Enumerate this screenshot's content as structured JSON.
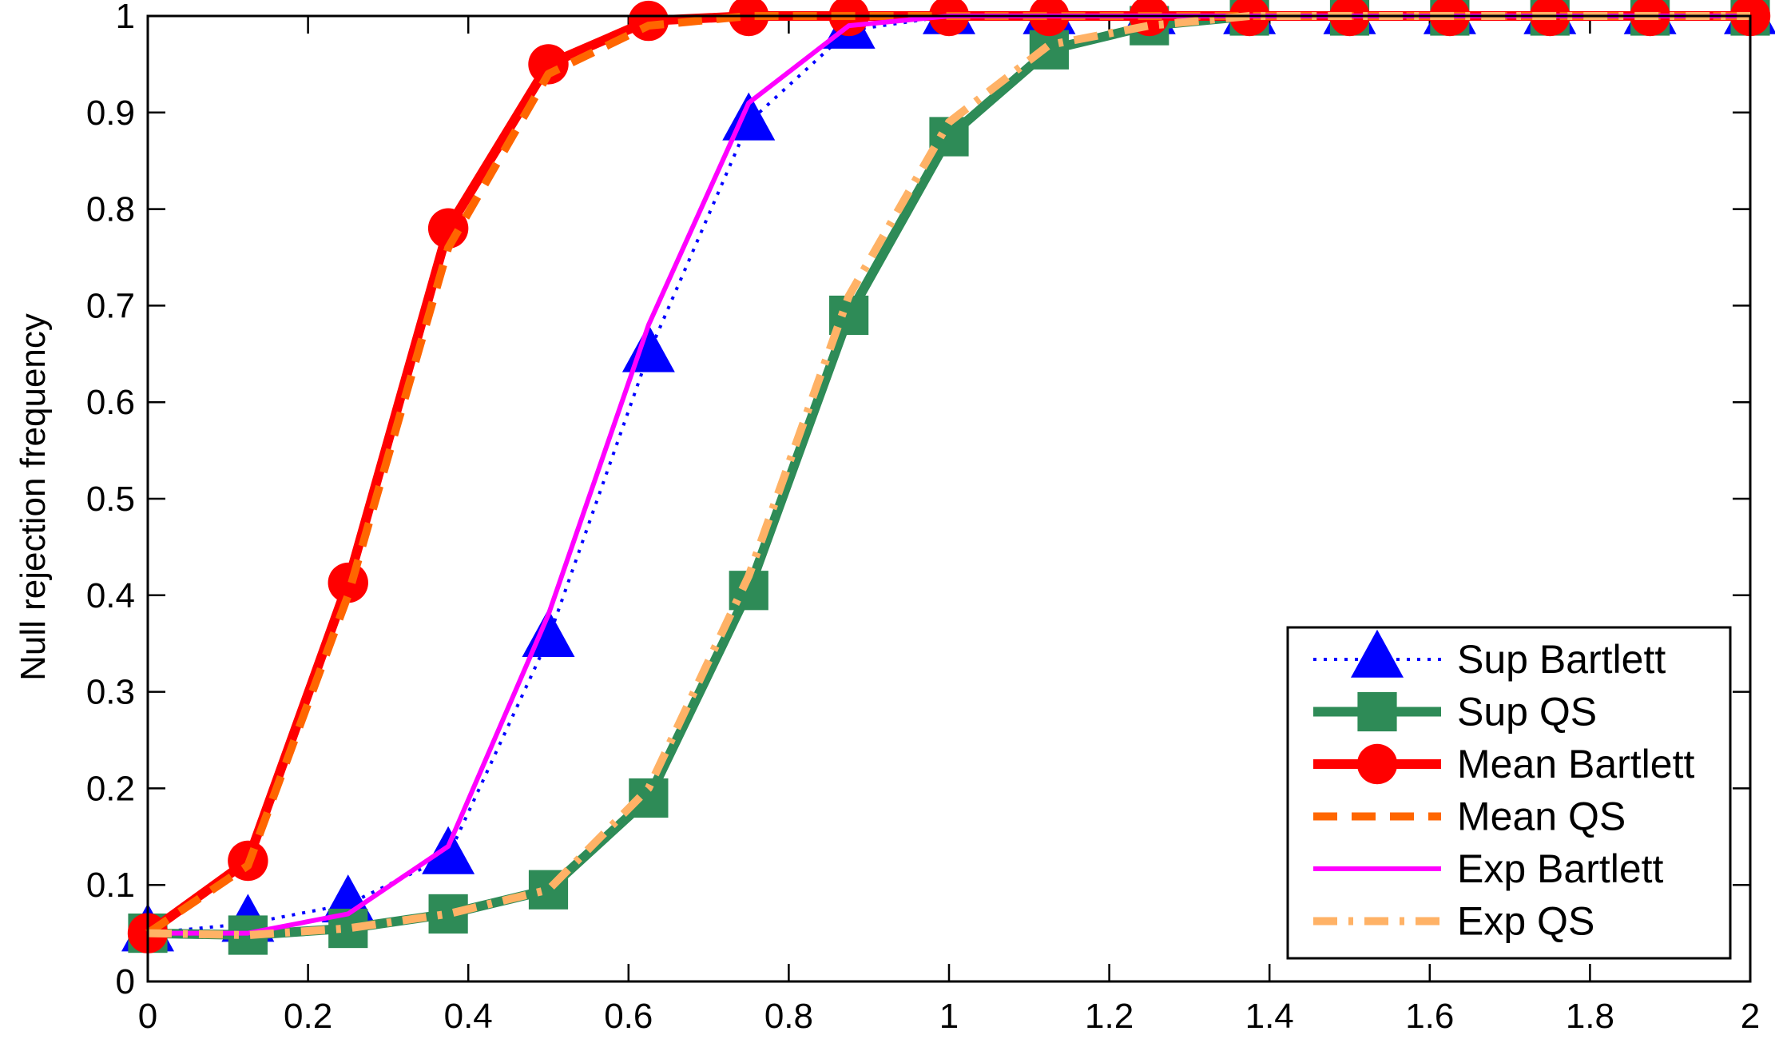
{
  "chart_data": {
    "type": "line",
    "title": "",
    "xlabel": "",
    "ylabel": "Null rejection frequency",
    "xlim": [
      0,
      2
    ],
    "ylim": [
      0,
      1.0
    ],
    "grid": false,
    "legend_position": "bottom-right",
    "xticks": [
      0,
      0.2,
      0.4,
      0.6,
      0.8,
      1,
      1.2,
      1.4,
      1.6,
      1.8,
      2
    ],
    "xtick_labels": [
      "0",
      "0.2",
      "0.4",
      "0.6",
      "0.8",
      "1",
      "1.2",
      "1.4",
      "1.6",
      "1.8",
      "2"
    ],
    "yticks": [
      0,
      0.1,
      0.2,
      0.3,
      0.4,
      0.5,
      0.6,
      0.7,
      0.8,
      0.9,
      1
    ],
    "ytick_labels": [
      "0",
      "0.1",
      "0.2",
      "0.3",
      "0.4",
      "0.5",
      "0.6",
      "0.7",
      "0.8",
      "0.9",
      "1"
    ],
    "x": [
      0,
      0.125,
      0.25,
      0.375,
      0.5,
      0.625,
      0.75,
      0.875,
      1,
      1.125,
      1.25,
      1.375,
      1.5,
      1.625,
      1.75,
      1.875,
      2
    ],
    "series": [
      {
        "name": "Sup Bartlett",
        "color": "#0000ff",
        "line_style": "dotted",
        "marker": "triangle",
        "values": [
          0.05,
          0.06,
          0.08,
          0.13,
          0.355,
          0.65,
          0.89,
          0.985,
          1,
          1,
          1,
          1,
          1,
          1,
          1,
          1,
          1
        ]
      },
      {
        "name": "Sup QS",
        "color": "#2e8b57",
        "line_style": "solid",
        "marker": "square",
        "values": [
          0.05,
          0.048,
          0.055,
          0.07,
          0.095,
          0.19,
          0.405,
          0.69,
          0.875,
          0.965,
          0.99,
          1,
          1,
          1,
          1,
          1,
          1
        ]
      },
      {
        "name": "Mean Bartlett",
        "color": "#ff0000",
        "line_style": "solid",
        "marker": "circle",
        "values": [
          0.05,
          0.125,
          0.413,
          0.78,
          0.95,
          0.995,
          1,
          1,
          1,
          1,
          1,
          1,
          1,
          1,
          1,
          1,
          1
        ]
      },
      {
        "name": "Mean QS",
        "color": "#ff6600",
        "line_style": "dashed",
        "marker": "none",
        "values": [
          0.05,
          0.12,
          0.4,
          0.76,
          0.94,
          0.99,
          1,
          1,
          1,
          1,
          1,
          1,
          1,
          1,
          1,
          1,
          1
        ]
      },
      {
        "name": "Exp Bartlett",
        "color": "#ff00ff",
        "line_style": "solid",
        "marker": "none",
        "values": [
          0.05,
          0.05,
          0.07,
          0.14,
          0.38,
          0.68,
          0.91,
          0.99,
          1,
          1,
          1,
          1,
          1,
          1,
          1,
          1,
          1
        ]
      },
      {
        "name": "Exp QS",
        "color": "#ffb266",
        "line_style": "dash-dot",
        "marker": "none",
        "values": [
          0.05,
          0.048,
          0.055,
          0.07,
          0.095,
          0.2,
          0.42,
          0.71,
          0.89,
          0.97,
          0.99,
          1,
          1,
          1,
          1,
          1,
          1
        ]
      }
    ]
  }
}
